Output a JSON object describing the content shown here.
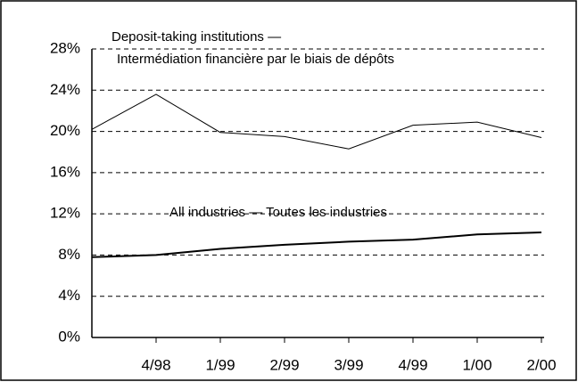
{
  "chart_data": {
    "type": "line",
    "categories": [
      null,
      "4/98",
      "1/99",
      "2/99",
      "3/99",
      "4/99",
      "1/00",
      "2/00"
    ],
    "series": [
      {
        "color": "#000000",
        "width": 1,
        "values": [
          20.2,
          23.6,
          19.9,
          19.5,
          18.3,
          20.6,
          20.9,
          19.4
        ]
      },
      {
        "color": "#000000",
        "width": 2,
        "values": [
          7.8,
          8.0,
          8.6,
          9.0,
          9.3,
          9.5,
          10.0,
          10.2
        ]
      }
    ],
    "annotations": [
      "Deposit-taking institutions —",
      "Intermédiation financière par le biais de dépôts",
      "All industries — Toutes les industries"
    ],
    "ylim": [
      0,
      28
    ],
    "yticks": [
      {
        "value": 0,
        "label": "0%"
      },
      {
        "value": 4,
        "label": "4%"
      },
      {
        "value": 8,
        "label": "8%"
      },
      {
        "value": 12,
        "label": "12%"
      },
      {
        "value": 16,
        "label": "16%"
      },
      {
        "value": 20,
        "label": "20%"
      },
      {
        "value": 24,
        "label": "24%"
      },
      {
        "value": 28,
        "label": "28%"
      }
    ],
    "grid": true
  }
}
